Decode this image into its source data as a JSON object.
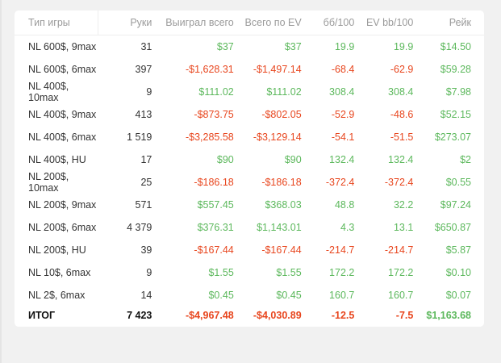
{
  "headers": [
    "Тип игры",
    "Руки",
    "Выиграл всего",
    "Всего по EV",
    "бб/100",
    "EV bb/100",
    "Рейк"
  ],
  "rows": [
    [
      "NL 600$, 9max",
      "31",
      "$37",
      "$37",
      "19.9",
      "19.9",
      "$14.50"
    ],
    [
      "NL 600$, 6max",
      "397",
      "-$1,628.31",
      "-$1,497.14",
      "-68.4",
      "-62.9",
      "$59.28"
    ],
    [
      "NL 400$, 10max",
      "9",
      "$111.02",
      "$111.02",
      "308.4",
      "308.4",
      "$7.98"
    ],
    [
      "NL 400$, 9max",
      "413",
      "-$873.75",
      "-$802.05",
      "-52.9",
      "-48.6",
      "$52.15"
    ],
    [
      "NL 400$, 6max",
      "1 519",
      "-$3,285.58",
      "-$3,129.14",
      "-54.1",
      "-51.5",
      "$273.07"
    ],
    [
      "NL 400$, HU",
      "17",
      "$90",
      "$90",
      "132.4",
      "132.4",
      "$2"
    ],
    [
      "NL 200$, 10max",
      "25",
      "-$186.18",
      "-$186.18",
      "-372.4",
      "-372.4",
      "$0.55"
    ],
    [
      "NL 200$, 9max",
      "571",
      "$557.45",
      "$368.03",
      "48.8",
      "32.2",
      "$97.24"
    ],
    [
      "NL 200$, 6max",
      "4 379",
      "$376.31",
      "$1,143.01",
      "4.3",
      "13.1",
      "$650.87"
    ],
    [
      "NL 200$, HU",
      "39",
      "-$167.44",
      "-$167.44",
      "-214.7",
      "-214.7",
      "$5.87"
    ],
    [
      "NL 10$, 6max",
      "9",
      "$1.55",
      "$1.55",
      "172.2",
      "172.2",
      "$0.10"
    ],
    [
      "NL 2$, 6max",
      "14",
      "$0.45",
      "$0.45",
      "160.7",
      "160.7",
      "$0.07"
    ]
  ],
  "total": [
    "ИТОГ",
    "7 423",
    "-$4,967.48",
    "-$4,030.89",
    "-12.5",
    "-7.5",
    "$1,163.68"
  ],
  "colors": {
    "positive": "#5cb85c",
    "negative": "#e8461e"
  }
}
